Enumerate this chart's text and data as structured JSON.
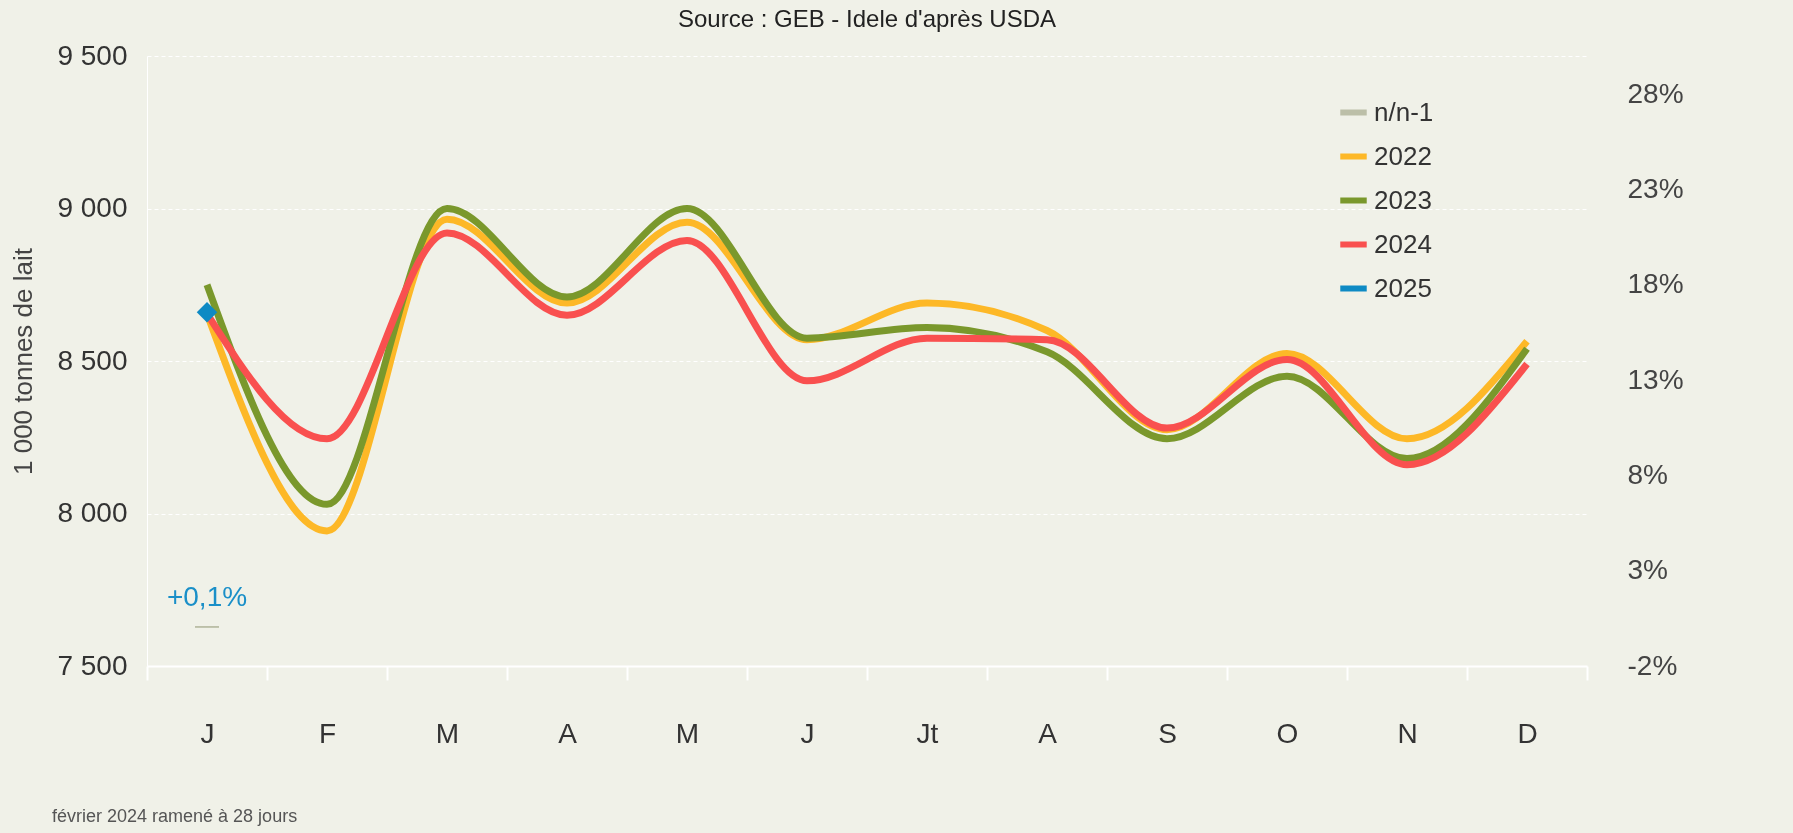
{
  "chart_data": {
    "type": "line",
    "categories": [
      "J",
      "F",
      "M",
      "A",
      "M",
      "J",
      "Jt",
      "A",
      "S",
      "O",
      "N",
      "D"
    ],
    "ylabel": "1 000 tonnes de lait",
    "ylim": [
      7500,
      9500
    ],
    "yticks": [
      {
        "value": 7500,
        "label": "7 500"
      },
      {
        "value": 8000,
        "label": "8 000"
      },
      {
        "value": 8500,
        "label": "8 500"
      },
      {
        "value": 9000,
        "label": "9 000"
      },
      {
        "value": 9500,
        "label": "9 500"
      }
    ],
    "y2lim": [
      -2,
      30
    ],
    "y2ticks": [
      {
        "value": -2,
        "label": "-2%"
      },
      {
        "value": 3,
        "label": "3%"
      },
      {
        "value": 8,
        "label": "8%"
      },
      {
        "value": 13,
        "label": "13%"
      },
      {
        "value": 18,
        "label": "18%"
      },
      {
        "value": 23,
        "label": "23%"
      },
      {
        "value": 28,
        "label": "28%"
      }
    ],
    "series": [
      {
        "name": "n/n-1",
        "type": "bar",
        "axis": "y2",
        "color": "#bcbfa8",
        "values": [
          0.1,
          null,
          null,
          null,
          null,
          null,
          null,
          null,
          null,
          null,
          null,
          null
        ],
        "value_labels": [
          "+0,1%",
          null,
          null,
          null,
          null,
          null,
          null,
          null,
          null,
          null,
          null,
          null
        ]
      },
      {
        "name": "2022",
        "color": "#fdb827",
        "values": [
          8655,
          7943,
          8965,
          8690,
          8955,
          8570,
          8690,
          8600,
          8275,
          8525,
          8245,
          8565
        ]
      },
      {
        "name": "2023",
        "color": "#7a982c",
        "values": [
          8750,
          8030,
          9000,
          8710,
          9000,
          8575,
          8610,
          8530,
          8245,
          8450,
          8180,
          8540
        ]
      },
      {
        "name": "2024",
        "color": "#f9504f",
        "values": [
          8655,
          8245,
          8920,
          8650,
          8895,
          8435,
          8575,
          8570,
          8280,
          8505,
          8160,
          8490
        ]
      },
      {
        "name": "2025",
        "color": "#0e8ac4",
        "marker": "diamond",
        "values": [
          8660,
          null,
          null,
          null,
          null,
          null,
          null,
          null,
          null,
          null,
          null,
          null
        ]
      }
    ],
    "grid": "y",
    "legend": "top right",
    "annotations": [
      "Source : GEB - Idele d'après USDA",
      "février 2024 ramené à 28 jours"
    ]
  }
}
